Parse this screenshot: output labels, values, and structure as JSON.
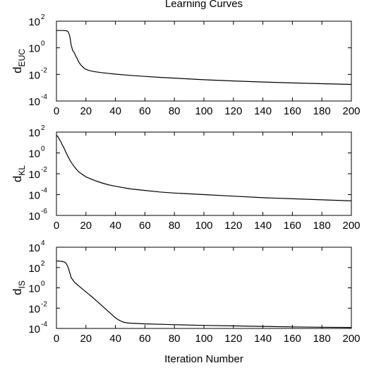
{
  "title": "Learning Curves",
  "xlabel": "Iteration Number",
  "chart_data": [
    {
      "type": "line",
      "title": "Learning Curves",
      "ylabel": {
        "main": "d",
        "sub": "EUC"
      },
      "xlabel": "",
      "xlim": [
        0,
        200
      ],
      "ylim_exp": [
        -4,
        2
      ],
      "yscale": "log",
      "xticks": [
        "0",
        "20",
        "40",
        "60",
        "80",
        "100",
        "120",
        "140",
        "160",
        "180",
        "200"
      ],
      "yticks": [
        {
          "base": "10",
          "exp": "-4"
        },
        {
          "base": "10",
          "exp": "-2"
        },
        {
          "base": "10",
          "exp": "0"
        },
        {
          "base": "10",
          "exp": "2"
        }
      ],
      "grid": false,
      "series": [
        {
          "x": [
            0,
            1,
            3,
            5,
            7,
            8,
            9,
            10,
            11,
            12,
            13,
            14,
            15,
            16,
            17,
            18,
            19,
            20,
            22,
            25,
            30,
            35,
            40,
            50,
            60,
            70,
            80,
            100,
            120,
            140,
            160,
            180,
            200
          ],
          "log10y": [
            1.3,
            1.3,
            1.3,
            1.3,
            1.28,
            1.2,
            0.9,
            0.2,
            -0.2,
            -0.35,
            -0.6,
            -0.8,
            -1.05,
            -1.2,
            -1.35,
            -1.45,
            -1.55,
            -1.62,
            -1.7,
            -1.78,
            -1.86,
            -1.92,
            -1.98,
            -2.07,
            -2.15,
            -2.22,
            -2.28,
            -2.4,
            -2.49,
            -2.57,
            -2.64,
            -2.7,
            -2.75
          ]
        }
      ]
    },
    {
      "type": "line",
      "ylabel": {
        "main": "d",
        "sub": "KL"
      },
      "xlabel": "",
      "xlim": [
        0,
        200
      ],
      "ylim_exp": [
        -6,
        2
      ],
      "yscale": "log",
      "xticks": [
        "0",
        "20",
        "40",
        "60",
        "80",
        "100",
        "120",
        "140",
        "160",
        "180",
        "200"
      ],
      "yticks": [
        {
          "base": "10",
          "exp": "-6"
        },
        {
          "base": "10",
          "exp": "-4"
        },
        {
          "base": "10",
          "exp": "-2"
        },
        {
          "base": "10",
          "exp": "0"
        },
        {
          "base": "10",
          "exp": "2"
        }
      ],
      "grid": false,
      "series": [
        {
          "x": [
            0,
            1,
            2,
            3,
            4,
            5,
            6,
            7,
            8,
            10,
            12,
            15,
            18,
            20,
            25,
            30,
            35,
            40,
            50,
            60,
            70,
            80,
            100,
            120,
            140,
            160,
            180,
            200
          ],
          "log10y": [
            1.7,
            1.55,
            1.3,
            1.05,
            0.75,
            0.5,
            0.2,
            -0.1,
            -0.4,
            -0.9,
            -1.3,
            -1.8,
            -2.1,
            -2.3,
            -2.6,
            -2.85,
            -3.05,
            -3.2,
            -3.45,
            -3.6,
            -3.75,
            -3.85,
            -4.0,
            -4.15,
            -4.3,
            -4.4,
            -4.5,
            -4.6
          ]
        }
      ]
    },
    {
      "type": "line",
      "ylabel": {
        "main": "d",
        "sub": "IS"
      },
      "xlabel": "Iteration Number",
      "xlim": [
        0,
        200
      ],
      "ylim_exp": [
        -4,
        4
      ],
      "yscale": "log",
      "xticks": [
        "0",
        "20",
        "40",
        "60",
        "80",
        "100",
        "120",
        "140",
        "160",
        "180",
        "200"
      ],
      "yticks": [
        {
          "base": "10",
          "exp": "-4"
        },
        {
          "base": "10",
          "exp": "-2"
        },
        {
          "base": "10",
          "exp": "0"
        },
        {
          "base": "10",
          "exp": "2"
        },
        {
          "base": "10",
          "exp": "4"
        }
      ],
      "grid": false,
      "series": [
        {
          "x": [
            0,
            2,
            4,
            6,
            7,
            8,
            9,
            10,
            11,
            12,
            13,
            15,
            20,
            25,
            30,
            35,
            40,
            42,
            44,
            46,
            48,
            50,
            60,
            80,
            100,
            120,
            140,
            160,
            180,
            200
          ],
          "log10y": [
            2.65,
            2.63,
            2.6,
            2.5,
            2.3,
            2.0,
            1.5,
            1.0,
            0.8,
            0.6,
            0.45,
            0.2,
            -0.4,
            -1.0,
            -1.65,
            -2.3,
            -2.95,
            -3.15,
            -3.3,
            -3.4,
            -3.45,
            -3.48,
            -3.55,
            -3.63,
            -3.7,
            -3.75,
            -3.8,
            -3.85,
            -3.88,
            -3.9
          ]
        }
      ]
    }
  ]
}
